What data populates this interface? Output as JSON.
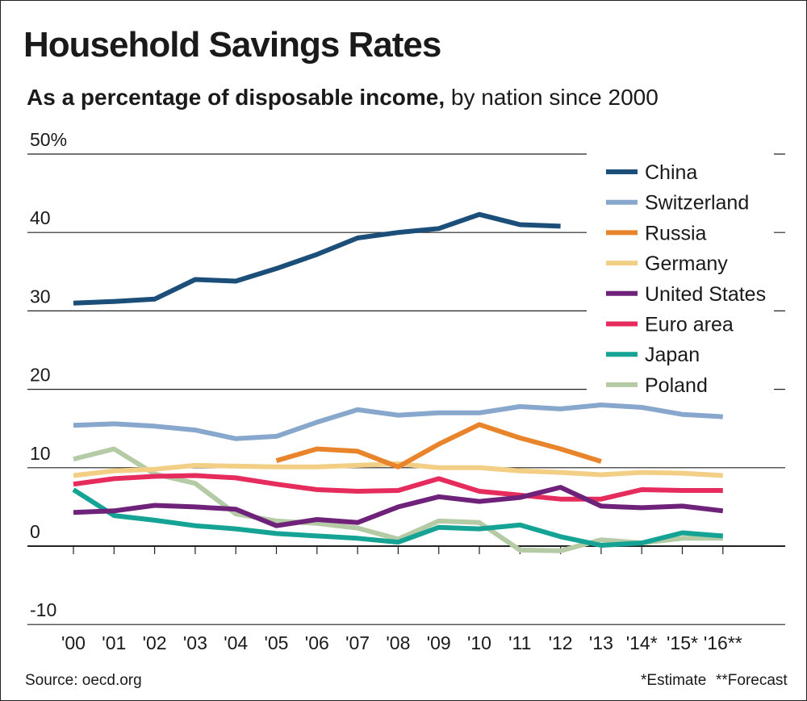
{
  "chart_data": {
    "type": "line",
    "title": "Household Savings Rates",
    "subtitle_bold": "As a percentage of disposable income,",
    "subtitle_rest": " by nation since 2000",
    "x": [
      "'00",
      "'01",
      "'02",
      "'03",
      "'04",
      "'05",
      "'06",
      "'07",
      "'08",
      "'09",
      "'10",
      "'11",
      "'12",
      "'13",
      "'14*",
      "'15*",
      "'16**"
    ],
    "y_ticks": [
      {
        "value": 50,
        "label": "50%"
      },
      {
        "value": 40,
        "label": "40"
      },
      {
        "value": 30,
        "label": "30"
      },
      {
        "value": 20,
        "label": "20"
      },
      {
        "value": 10,
        "label": "10"
      },
      {
        "value": 0,
        "label": "0"
      },
      {
        "value": -10,
        "label": "-10"
      }
    ],
    "ylim": [
      -10,
      50
    ],
    "grid": true,
    "legend_position": "top-right",
    "series": [
      {
        "name": "China",
        "color": "#1b4e79",
        "values": [
          31.0,
          31.2,
          31.5,
          34.0,
          33.8,
          35.4,
          37.2,
          39.3,
          40.0,
          40.5,
          42.3,
          41.0,
          40.8,
          null,
          null,
          null,
          null
        ]
      },
      {
        "name": "Switzerland",
        "color": "#87a7cc",
        "values": [
          15.4,
          15.6,
          15.3,
          14.8,
          13.7,
          14.0,
          15.8,
          17.4,
          16.7,
          17.0,
          17.0,
          17.8,
          17.5,
          18.0,
          17.7,
          16.8,
          16.5
        ]
      },
      {
        "name": "Russia",
        "color": "#e8852c",
        "values": [
          null,
          null,
          null,
          null,
          null,
          10.9,
          12.4,
          12.1,
          10.1,
          13.0,
          15.5,
          13.8,
          12.4,
          10.8,
          null,
          null,
          null
        ]
      },
      {
        "name": "Germany",
        "color": "#f2cf85",
        "values": [
          9.0,
          9.6,
          9.8,
          10.3,
          10.2,
          10.1,
          10.1,
          10.3,
          10.5,
          10.0,
          10.0,
          9.6,
          9.4,
          9.1,
          9.4,
          9.3,
          9.0
        ]
      },
      {
        "name": "United States",
        "color": "#6e2279",
        "values": [
          4.3,
          4.5,
          5.2,
          5.0,
          4.7,
          2.6,
          3.4,
          3.0,
          5.0,
          6.3,
          5.7,
          6.2,
          7.5,
          5.1,
          4.9,
          5.1,
          4.5
        ]
      },
      {
        "name": "Euro area",
        "color": "#e52c5d",
        "values": [
          7.9,
          8.6,
          8.9,
          9.0,
          8.7,
          7.9,
          7.2,
          7.0,
          7.1,
          8.6,
          7.0,
          6.5,
          6.0,
          6.0,
          7.2,
          7.1,
          7.1
        ]
      },
      {
        "name": "Japan",
        "color": "#14a394",
        "values": [
          7.2,
          3.9,
          3.3,
          2.6,
          2.2,
          1.6,
          1.3,
          1.0,
          0.5,
          2.4,
          2.2,
          2.7,
          1.2,
          0.1,
          0.4,
          1.7,
          1.3
        ]
      },
      {
        "name": "Poland",
        "color": "#b4cba6",
        "values": [
          11.1,
          12.4,
          9.2,
          8.0,
          4.1,
          3.2,
          2.9,
          2.3,
          0.9,
          3.2,
          3.0,
          -0.5,
          -0.6,
          0.8,
          0.4,
          1.0,
          1.0
        ]
      }
    ]
  },
  "footer": {
    "source": "Source: oecd.org",
    "estimate": "*Estimate",
    "forecast": "**Forecast"
  }
}
